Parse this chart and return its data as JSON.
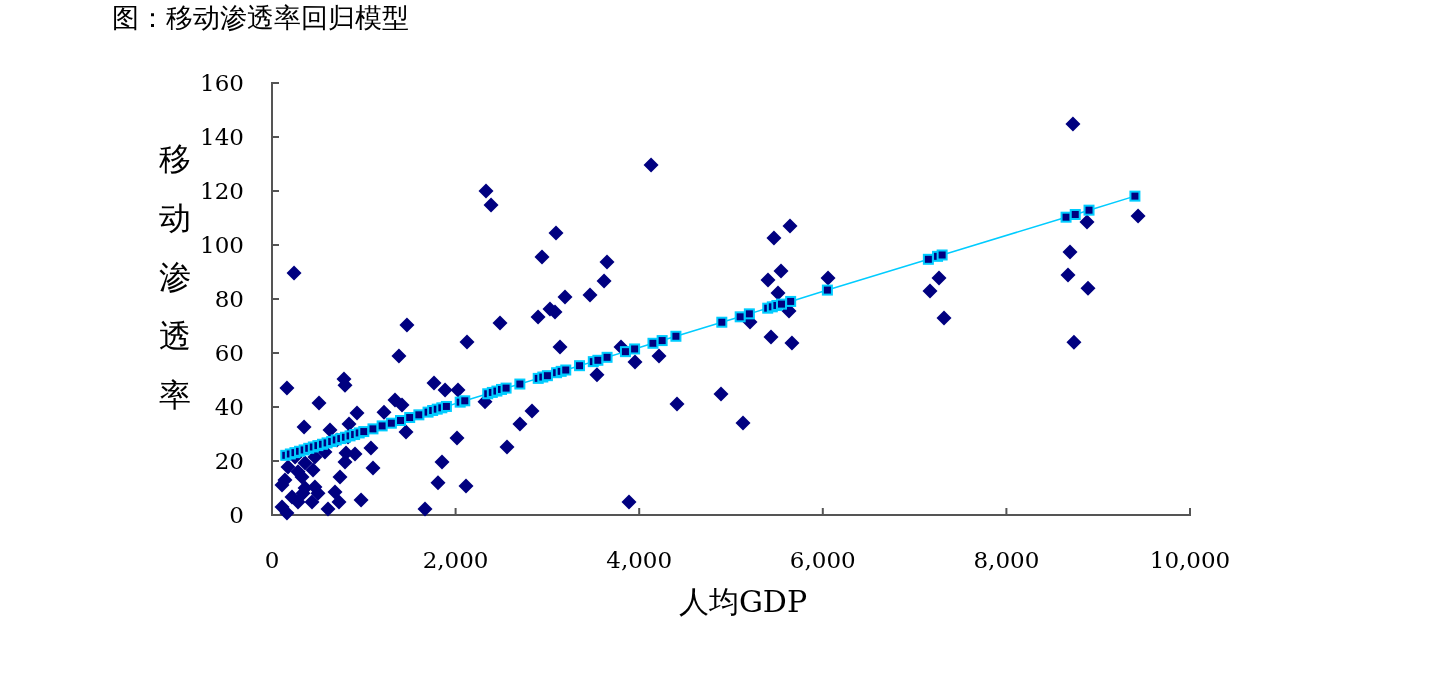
{
  "chart_data": {
    "type": "scatter",
    "title": "图：移动渗透率回归模型",
    "xlabel": "人均GDP",
    "ylabel": "移动渗透率",
    "xlim": [
      0,
      10000
    ],
    "xticks": [
      0,
      {
        "value": 2000,
        "label": "2,000"
      },
      {
        "value": 4000,
        "label": "4,000"
      },
      {
        "value": 6000,
        "label": "6,000"
      },
      {
        "value": 8000,
        "label": "8,000"
      },
      {
        "value": 10000,
        "label": "10,000"
      }
    ],
    "ylim": [
      0,
      160
    ],
    "yticks": [
      0,
      20,
      40,
      60,
      80,
      100,
      120,
      140,
      160
    ],
    "grid": false,
    "series": [
      {
        "marker": "diamond",
        "color": "#000080",
        "x": [
          8725,
          4129,
          2331,
          2386,
          3094,
          5468,
          5643,
          8878,
          9434,
          8693,
          8671,
          8889,
          8736,
          7266,
          7168,
          7320,
          6057,
          5545,
          5403,
          5512,
          5632,
          5207,
          5436,
          5664,
          5131,
          2941,
          3649,
          3617,
          3192,
          3464,
          2898,
          3028,
          3083,
          2484,
          3137,
          3802,
          3954,
          4216,
          3540,
          4412,
          4891,
          2832,
          2701,
          2560,
          3889,
          163,
          784,
          795,
          512,
          349,
          926,
          1220,
          1340,
          1416,
          1470,
          1383,
          1460,
          1765,
          1885,
          2026,
          2124,
          2320,
          2015,
          1852,
          1808,
          2113,
          1667,
          1078,
          1100,
          741,
          970,
          610,
          730,
          839,
          806,
          904,
          795,
          632,
          577,
          468,
          360,
          251,
          447,
          283,
          174,
          141,
          468,
          360,
          109,
          218,
          686,
          436,
          283,
          109,
          163,
          338,
          501,
          240,
          708,
          828,
          327
        ],
        "values": [
          144.8,
          129.6,
          120,
          114.8,
          104.4,
          102.6,
          107,
          108.5,
          110.7,
          97.4,
          88.9,
          84,
          64,
          87.8,
          83,
          73,
          87.8,
          90.4,
          87,
          82.2,
          75.6,
          71.5,
          65.9,
          63.7,
          34.1,
          95.6,
          93.7,
          86.7,
          80.7,
          81.5,
          73.3,
          76.3,
          75.2,
          71.1,
          62.2,
          62.2,
          56.7,
          58.9,
          51.9,
          41.1,
          44.8,
          38.5,
          33.7,
          25.2,
          4.8,
          47,
          50.4,
          48.1,
          41.5,
          32.6,
          37.8,
          38.1,
          42.6,
          40.7,
          70.4,
          58.9,
          30.7,
          48.9,
          46.3,
          46.3,
          64.1,
          41.9,
          28.5,
          19.6,
          11.9,
          10.7,
          2.2,
          24.8,
          17.4,
          14.1,
          5.6,
          2.2,
          4.8,
          33.7,
          23,
          22.6,
          19.6,
          31.5,
          23.3,
          21.5,
          19.3,
          21.5,
          16.7,
          16,
          17.8,
          13,
          10.4,
          10,
          11.1,
          6.7,
          8.5,
          4.8,
          4.8,
          3,
          0.7,
          8.1,
          8.1,
          89.6,
          27.8,
          28.9,
          14.1
        ]
      },
      {
        "type": "line",
        "marker": "square",
        "color": "#00ccff",
        "x": [
          150,
          200,
          250,
          300,
          350,
          400,
          450,
          500,
          550,
          600,
          650,
          700,
          750,
          800,
          850,
          900,
          950,
          1000,
          1100,
          1200,
          1300,
          1400,
          1500,
          1600,
          1700,
          1750,
          1800,
          1850,
          1900,
          2050,
          2100,
          2350,
          2400,
          2450,
          2500,
          2550,
          2700,
          2900,
          2950,
          3000,
          3100,
          3150,
          3200,
          3350,
          3500,
          3550,
          3650,
          3850,
          3950,
          4150,
          4250,
          4400,
          4900,
          5100,
          5200,
          5400,
          5450,
          5500,
          5550,
          5650,
          6050,
          7150,
          7250,
          7300,
          8650,
          8750,
          8900,
          9400
        ],
        "values": [
          22.1,
          22.6,
          23.1,
          23.6,
          24.1,
          24.7,
          25.2,
          25.7,
          26.2,
          26.7,
          27.2,
          27.8,
          28.3,
          28.8,
          29.3,
          29.8,
          30.4,
          30.9,
          31.9,
          33,
          34,
          35,
          36.1,
          37.1,
          38.1,
          38.7,
          39.2,
          39.7,
          40.2,
          41.8,
          42.3,
          44.9,
          45.4,
          45.9,
          46.5,
          47,
          48.5,
          50.6,
          51.1,
          51.6,
          52.7,
          53.2,
          53.7,
          55.3,
          56.8,
          57.3,
          58.4,
          60.5,
          61.5,
          63.6,
          64.6,
          66.2,
          71.4,
          73.4,
          74.5,
          76.6,
          77.1,
          77.6,
          78.1,
          79.1,
          83.3,
          94.7,
          95.8,
          96.3,
          110.3,
          111.3,
          112.9,
          118.1
        ]
      }
    ]
  }
}
